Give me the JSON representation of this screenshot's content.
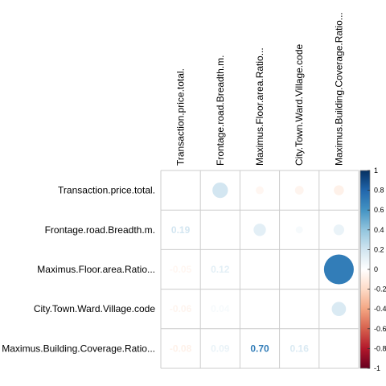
{
  "chart_data": {
    "type": "heatmap",
    "variables": [
      "Transaction.price.total.",
      "Frontage.road.Breadth.m.",
      "Maximus.Floor.area.Ratio...",
      "City.Town.Ward.Village.code",
      "Maximus.Building.Coverage.Ratio..."
    ],
    "correlation_matrix": [
      [
        1.0,
        0.19,
        -0.05,
        -0.06,
        -0.08
      ],
      [
        0.19,
        1.0,
        0.12,
        0.04,
        0.09
      ],
      [
        -0.05,
        0.12,
        1.0,
        0.0,
        0.7
      ],
      [
        -0.06,
        0.04,
        0.0,
        1.0,
        0.16
      ],
      [
        -0.08,
        0.09,
        0.7,
        0.16,
        1.0
      ]
    ],
    "lower_triangle_labels": [
      [
        "1",
        "0",
        "0.19"
      ],
      [
        "2",
        "0",
        "-0.05"
      ],
      [
        "2",
        "1",
        "0.12"
      ],
      [
        "3",
        "0",
        "-0.06"
      ],
      [
        "3",
        "1",
        "0.04"
      ],
      [
        "4",
        "0",
        "-0.08"
      ],
      [
        "4",
        "1",
        "0.09"
      ],
      [
        "4",
        "2",
        "0.70"
      ],
      [
        "4",
        "3",
        "0.16"
      ]
    ],
    "lower_method": "number",
    "upper_method": "circle",
    "diagonal_shown": false,
    "color_scale": {
      "range": [
        -1,
        1
      ],
      "ticks": [
        "1",
        "0.8",
        "0.6",
        "0.4",
        "0.2",
        "0",
        "-0.2",
        "-0.4",
        "-0.6",
        "-0.8",
        "-1"
      ],
      "negative_color": "#67001F",
      "zero_color": "#FFFFFF",
      "positive_color": "#053061"
    },
    "grid": true,
    "legend_position": "right"
  }
}
